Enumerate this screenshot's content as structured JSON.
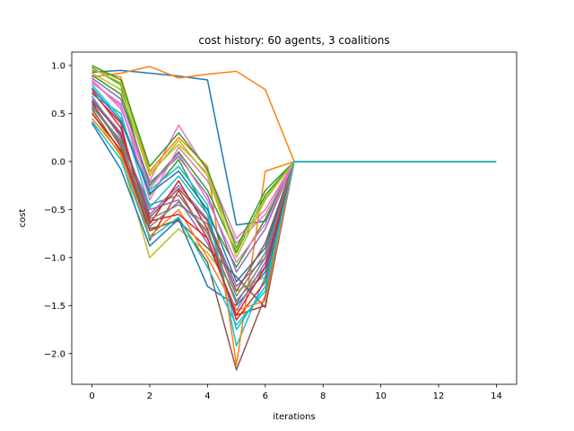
{
  "chart_data": {
    "type": "line",
    "title": "cost history: 60 agents, 3 coalitions",
    "xlabel": "iterations",
    "ylabel": "cost",
    "xlim": [
      -0.7,
      14.7
    ],
    "ylim": [
      -2.32,
      1.14
    ],
    "x_ticks": [
      0,
      2,
      4,
      6,
      8,
      10,
      12,
      14
    ],
    "y_ticks": [
      1.0,
      0.5,
      0.0,
      -0.5,
      -1.0,
      -1.5,
      -2.0
    ],
    "x_tick_labels": [
      "0",
      "2",
      "4",
      "6",
      "8",
      "10",
      "12",
      "14"
    ],
    "y_tick_labels": [
      "1.0",
      "0.5",
      "0.0",
      "−0.5",
      "−1.0",
      "−1.5",
      "−2.0"
    ],
    "grid": false,
    "colors": [
      "#1f77b4",
      "#ff7f0e",
      "#2ca02c",
      "#d62728",
      "#9467bd",
      "#8c564b",
      "#e377c2",
      "#7f7f7f",
      "#bcbd22",
      "#17becf"
    ],
    "x": [
      0,
      1,
      2,
      3,
      4,
      5,
      6,
      7,
      8,
      9,
      10,
      11,
      12,
      13,
      14
    ],
    "series": [
      {
        "values": [
          0.93,
          0.95,
          0.92,
          0.89,
          0.85,
          -0.66,
          -0.62,
          0,
          0,
          0,
          0,
          0,
          0,
          0,
          0
        ]
      },
      {
        "values": [
          0.88,
          0.92,
          0.99,
          0.87,
          0.91,
          0.94,
          0.75,
          0,
          0,
          0,
          0,
          0,
          0,
          0,
          0
        ]
      },
      {
        "values": [
          0.98,
          0.8,
          -0.35,
          0.02,
          -0.55,
          -1.1,
          -0.6,
          0,
          0,
          0,
          0,
          0,
          0,
          0,
          0
        ]
      },
      {
        "values": [
          0.72,
          0.4,
          -0.82,
          -0.3,
          -0.8,
          -1.6,
          -1.5,
          0,
          0,
          0,
          0,
          0,
          0,
          0,
          0
        ]
      },
      {
        "values": [
          0.65,
          0.3,
          -0.55,
          -0.25,
          -0.6,
          -1.3,
          -1.0,
          0,
          0,
          0,
          0,
          0,
          0,
          0,
          0
        ]
      },
      {
        "values": [
          0.55,
          0.1,
          -0.72,
          -0.6,
          -1.05,
          -2.17,
          -1.4,
          0,
          0,
          0,
          0,
          0,
          0,
          0,
          0
        ]
      },
      {
        "values": [
          0.85,
          0.55,
          -0.2,
          0.38,
          -0.1,
          -0.8,
          -0.5,
          0,
          0,
          0,
          0,
          0,
          0,
          0,
          0
        ]
      },
      {
        "values": [
          0.6,
          0.2,
          -0.45,
          -0.35,
          -0.75,
          -1.45,
          -1.1,
          0,
          0,
          0,
          0,
          0,
          0,
          0,
          0
        ]
      },
      {
        "values": [
          0.52,
          0.05,
          -1.0,
          -0.7,
          -0.95,
          -1.35,
          -1.2,
          0,
          0,
          0,
          0,
          0,
          0,
          0,
          0
        ]
      },
      {
        "values": [
          0.8,
          0.45,
          -0.3,
          -0.05,
          -0.45,
          -1.92,
          -1.2,
          0,
          0,
          0,
          0,
          0,
          0,
          0,
          0
        ]
      },
      {
        "values": [
          0.4,
          -0.08,
          -0.88,
          -0.6,
          -1.3,
          -1.5,
          -1.15,
          0,
          0,
          0,
          0,
          0,
          0,
          0,
          0
        ]
      },
      {
        "values": [
          0.95,
          0.88,
          -0.1,
          0.25,
          -0.05,
          -2.12,
          -0.1,
          0,
          0,
          0,
          0,
          0,
          0,
          0,
          0
        ]
      },
      {
        "values": [
          0.9,
          0.7,
          -0.25,
          0.1,
          -0.3,
          -0.95,
          -0.35,
          0,
          0,
          0,
          0,
          0,
          0,
          0,
          0
        ]
      },
      {
        "values": [
          0.75,
          0.35,
          -0.65,
          -0.2,
          -0.7,
          -1.65,
          -1.25,
          0,
          0,
          0,
          0,
          0,
          0,
          0,
          0
        ]
      },
      {
        "values": [
          0.68,
          0.25,
          -0.5,
          -0.4,
          -0.85,
          -1.55,
          -1.05,
          0,
          0,
          0,
          0,
          0,
          0,
          0,
          0
        ]
      },
      {
        "values": [
          0.62,
          0.15,
          -0.7,
          -0.62,
          -0.9,
          -1.2,
          -1.52,
          0,
          0,
          0,
          0,
          0,
          0,
          0,
          0
        ]
      },
      {
        "values": [
          0.82,
          0.6,
          -0.4,
          0.15,
          -0.2,
          -0.85,
          -0.55,
          0,
          0,
          0,
          0,
          0,
          0,
          0,
          0
        ]
      },
      {
        "values": [
          0.58,
          0.18,
          -0.6,
          -0.45,
          -0.65,
          -1.4,
          -0.95,
          0,
          0,
          0,
          0,
          0,
          0,
          0,
          0
        ]
      },
      {
        "values": [
          0.92,
          0.75,
          -0.15,
          0.22,
          -0.15,
          -1.0,
          -0.4,
          0,
          0,
          0,
          0,
          0,
          0,
          0,
          0
        ]
      },
      {
        "values": [
          0.7,
          0.5,
          -0.48,
          -0.15,
          -0.55,
          -1.75,
          -1.3,
          0,
          0,
          0,
          0,
          0,
          0,
          0,
          0
        ]
      },
      {
        "values": [
          0.77,
          0.42,
          -0.33,
          -0.1,
          -0.5,
          -1.25,
          -0.9,
          0,
          0,
          0,
          0,
          0,
          0,
          0,
          0
        ]
      },
      {
        "values": [
          0.45,
          0.08,
          -0.78,
          -0.5,
          -1.0,
          -1.55,
          -1.45,
          0,
          0,
          0,
          0,
          0,
          0,
          0,
          0
        ]
      },
      {
        "values": [
          1.0,
          0.85,
          -0.05,
          0.3,
          -0.08,
          -0.9,
          -0.3,
          0,
          0,
          0,
          0,
          0,
          0,
          0,
          0
        ]
      },
      {
        "values": [
          0.5,
          0.12,
          -0.62,
          -0.55,
          -0.8,
          -1.6,
          -1.1,
          0,
          0,
          0,
          0,
          0,
          0,
          0,
          0
        ]
      },
      {
        "values": [
          0.87,
          0.65,
          -0.22,
          0.05,
          -0.35,
          -1.15,
          -0.7,
          0,
          0,
          0,
          0,
          0,
          0,
          0,
          0
        ]
      },
      {
        "values": [
          0.63,
          0.28,
          -0.58,
          -0.28,
          -0.62,
          -1.35,
          -0.85,
          0,
          0,
          0,
          0,
          0,
          0,
          0,
          0
        ]
      },
      {
        "values": [
          0.83,
          0.58,
          -0.28,
          0.08,
          -0.4,
          -1.05,
          -0.65,
          0,
          0,
          0,
          0,
          0,
          0,
          0,
          0
        ]
      },
      {
        "values": [
          0.57,
          0.22,
          -0.68,
          -0.42,
          -0.72,
          -1.48,
          -1.0,
          0,
          0,
          0,
          0,
          0,
          0,
          0,
          0
        ]
      },
      {
        "values": [
          0.97,
          0.82,
          -0.12,
          0.18,
          -0.12,
          -0.92,
          -0.38,
          0,
          0,
          0,
          0,
          0,
          0,
          0,
          0
        ]
      },
      {
        "values": [
          0.42,
          0.02,
          -0.8,
          -0.58,
          -1.1,
          -1.7,
          -1.35,
          0,
          0,
          0,
          0,
          0,
          0,
          0,
          0
        ]
      }
    ]
  }
}
